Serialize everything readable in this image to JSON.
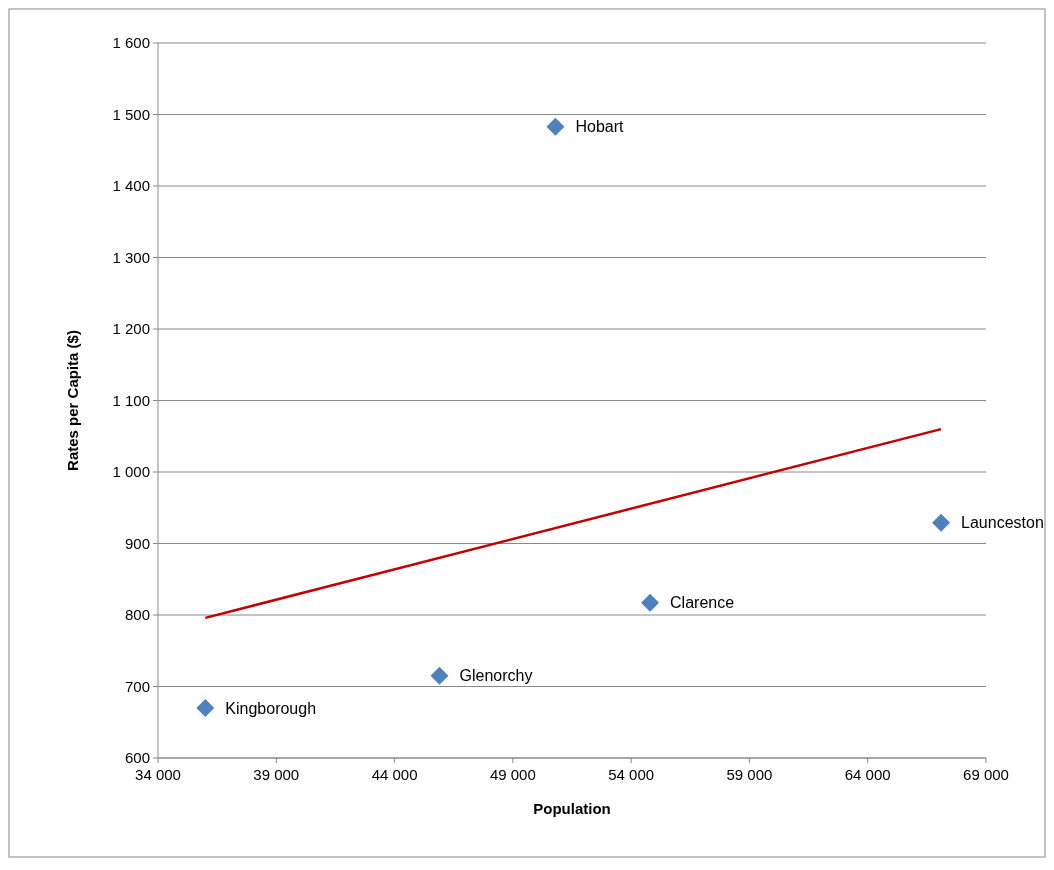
{
  "chart_data": {
    "type": "scatter",
    "xlabel": "Population",
    "ylabel": "Rates per Capita ($)",
    "xlim": [
      34000,
      69000
    ],
    "ylim": [
      600,
      1600
    ],
    "xticks": [
      {
        "value": 34000,
        "label": "34 000"
      },
      {
        "value": 39000,
        "label": "39 000"
      },
      {
        "value": 44000,
        "label": "44 000"
      },
      {
        "value": 49000,
        "label": "49 000"
      },
      {
        "value": 54000,
        "label": "54 000"
      },
      {
        "value": 59000,
        "label": "59 000"
      },
      {
        "value": 64000,
        "label": "64 000"
      },
      {
        "value": 69000,
        "label": "69 000"
      }
    ],
    "yticks": [
      {
        "value": 600,
        "label": "600"
      },
      {
        "value": 700,
        "label": "700"
      },
      {
        "value": 800,
        "label": "800"
      },
      {
        "value": 900,
        "label": "900"
      },
      {
        "value": 1000,
        "label": "1 000"
      },
      {
        "value": 1100,
        "label": "1 100"
      },
      {
        "value": 1200,
        "label": "1 200"
      },
      {
        "value": 1300,
        "label": "1 300"
      },
      {
        "value": 1400,
        "label": "1 400"
      },
      {
        "value": 1500,
        "label": "1 500"
      },
      {
        "value": 1600,
        "label": "1 600"
      }
    ],
    "grid": "y",
    "series": [
      {
        "marker": "diamond",
        "color": "#4f81bd",
        "x": [
          36000,
          45900,
          50800,
          54800,
          67100
        ],
        "values": [
          670,
          715,
          1483,
          817,
          929
        ]
      },
      {
        "type": "line",
        "marker": "none",
        "color": "#c00000",
        "x": [
          36000,
          67100
        ],
        "values": [
          796,
          1060
        ]
      }
    ],
    "annotations": [
      {
        "text": "Kingborough",
        "x": 36000,
        "y": 670
      },
      {
        "text": "Glenorchy",
        "x": 45900,
        "y": 715
      },
      {
        "text": "Hobart",
        "x": 50800,
        "y": 1483
      },
      {
        "text": "Clarence",
        "x": 54800,
        "y": 817
      },
      {
        "text": "Launceston",
        "x": 67100,
        "y": 929
      }
    ]
  }
}
